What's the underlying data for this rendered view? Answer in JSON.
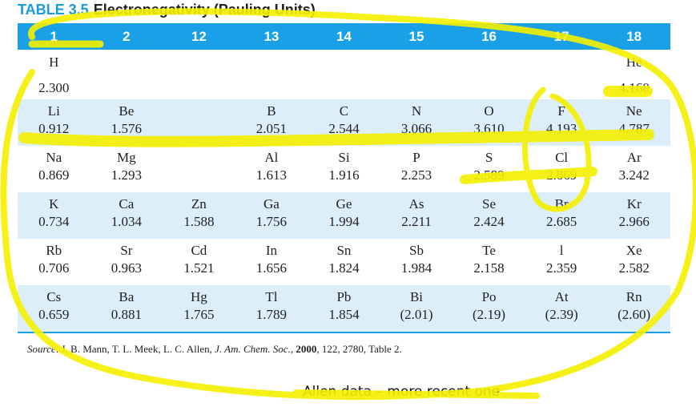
{
  "caption": {
    "table_no": "TABLE 3.5",
    "title": "Electronegativity (Pauling Units)"
  },
  "headers": [
    "1",
    "2",
    "12",
    "13",
    "14",
    "15",
    "16",
    "17",
    "18"
  ],
  "rows": [
    {
      "shaded": false,
      "cells": [
        {
          "s": "H",
          "v": "2.300"
        },
        {
          "s": "",
          "v": ""
        },
        {
          "s": "",
          "v": ""
        },
        {
          "s": "",
          "v": ""
        },
        {
          "s": "",
          "v": ""
        },
        {
          "s": "",
          "v": ""
        },
        {
          "s": "",
          "v": ""
        },
        {
          "s": "",
          "v": ""
        },
        {
          "s": "He",
          "v": "4.160"
        }
      ]
    },
    {
      "shaded": true,
      "cells": [
        {
          "s": "Li",
          "v": "0.912"
        },
        {
          "s": "Be",
          "v": "1.576"
        },
        {
          "s": "",
          "v": ""
        },
        {
          "s": "B",
          "v": "2.051"
        },
        {
          "s": "C",
          "v": "2.544"
        },
        {
          "s": "N",
          "v": "3.066"
        },
        {
          "s": "O",
          "v": "3.610"
        },
        {
          "s": "F",
          "v": "4.193"
        },
        {
          "s": "Ne",
          "v": "4.787"
        }
      ]
    },
    {
      "shaded": false,
      "cells": [
        {
          "s": "Na",
          "v": "0.869"
        },
        {
          "s": "Mg",
          "v": "1.293"
        },
        {
          "s": "",
          "v": ""
        },
        {
          "s": "Al",
          "v": "1.613"
        },
        {
          "s": "Si",
          "v": "1.916"
        },
        {
          "s": "P",
          "v": "2.253"
        },
        {
          "s": "S",
          "v": "2.589"
        },
        {
          "s": "Cl",
          "v": "2.869"
        },
        {
          "s": "Ar",
          "v": "3.242"
        }
      ]
    },
    {
      "shaded": true,
      "cells": [
        {
          "s": "K",
          "v": "0.734"
        },
        {
          "s": "Ca",
          "v": "1.034"
        },
        {
          "s": "Zn",
          "v": "1.588"
        },
        {
          "s": "Ga",
          "v": "1.756"
        },
        {
          "s": "Ge",
          "v": "1.994"
        },
        {
          "s": "As",
          "v": "2.211"
        },
        {
          "s": "Se",
          "v": "2.424"
        },
        {
          "s": "Br",
          "v": "2.685"
        },
        {
          "s": "Kr",
          "v": "2.966"
        }
      ]
    },
    {
      "shaded": false,
      "cells": [
        {
          "s": "Rb",
          "v": "0.706"
        },
        {
          "s": "Sr",
          "v": "0.963"
        },
        {
          "s": "Cd",
          "v": "1.521"
        },
        {
          "s": "In",
          "v": "1.656"
        },
        {
          "s": "Sn",
          "v": "1.824"
        },
        {
          "s": "Sb",
          "v": "1.984"
        },
        {
          "s": "Te",
          "v": "2.158"
        },
        {
          "s": "l",
          "v": "2.359"
        },
        {
          "s": "Xe",
          "v": "2.582"
        }
      ]
    },
    {
      "shaded": true,
      "cells": [
        {
          "s": "Cs",
          "v": "0.659"
        },
        {
          "s": "Ba",
          "v": "0.881"
        },
        {
          "s": "Hg",
          "v": "1.765"
        },
        {
          "s": "Tl",
          "v": "1.789"
        },
        {
          "s": "Pb",
          "v": "1.854"
        },
        {
          "s": "Bi",
          "v": "(2.01)"
        },
        {
          "s": "Po",
          "v": "(2.19)"
        },
        {
          "s": "At",
          "v": "(2.39)"
        },
        {
          "s": "Rn",
          "v": "(2.60)"
        }
      ]
    }
  ],
  "source": {
    "label": "Source",
    "authors": ": J. B. Mann, T. L. Meek, L. C. Allen, ",
    "journal": "J. Am. Chem. Soc.",
    "sep": ", ",
    "year": "2000",
    "rest": ", 122, 2780, Table 2."
  },
  "annotation": {
    "text": "Allen data – more recent one"
  },
  "colors": {
    "header": "#1aa0e6",
    "shade": "#ddeefb",
    "highlighter": "#f5f000"
  }
}
